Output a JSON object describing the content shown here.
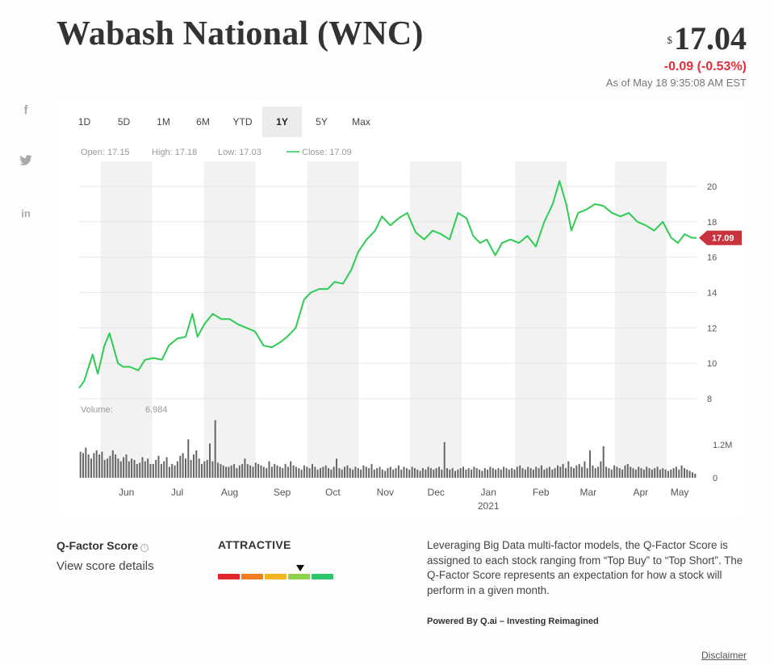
{
  "header": {
    "title": "Wabash National (WNC)",
    "currency_symbol": "$",
    "price": "17.04",
    "change": "-0.09 (-0.53%)",
    "as_of": "As of May 18 9:35:08 AM EST"
  },
  "social": {
    "facebook": "f",
    "twitter": "✦",
    "linkedin": "in"
  },
  "tabs": [
    "1D",
    "5D",
    "1M",
    "6M",
    "YTD",
    "1Y",
    "5Y",
    "Max"
  ],
  "active_tab": "1Y",
  "colors": {
    "line": "#2ecc52",
    "negative": "#e0303e",
    "band": "#f2f2f2",
    "volume": "#666666",
    "last_badge": "#c9333e"
  },
  "chart_data": {
    "type": "line",
    "stats": {
      "open_label": "Open:",
      "open": "17.15",
      "high_label": "High:",
      "high": "17.18",
      "low_label": "Low:",
      "low": "17.03",
      "close_label": "Close:",
      "close": "17.09"
    },
    "last_value_label": "17.09",
    "ylim": [
      8,
      20.5
    ],
    "y_ticks": [
      "8",
      "10",
      "12",
      "14",
      "16",
      "18",
      "20"
    ],
    "x_start": "2020-05-18",
    "x_end": "2021-05-18",
    "x_ticks": [
      {
        "label": "Jun",
        "date": "2020-06-15"
      },
      {
        "label": "Jul",
        "date": "2020-07-15"
      },
      {
        "label": "Aug",
        "date": "2020-08-15"
      },
      {
        "label": "Sep",
        "date": "2020-09-15"
      },
      {
        "label": "Oct",
        "date": "2020-10-15"
      },
      {
        "label": "Nov",
        "date": "2020-11-15"
      },
      {
        "label": "Dec",
        "date": "2020-12-15"
      },
      {
        "label": "Jan",
        "date": "2021-01-15"
      },
      {
        "label": "Feb",
        "date": "2021-02-15"
      },
      {
        "label": "Mar",
        "date": "2021-03-15"
      },
      {
        "label": "Apr",
        "date": "2021-04-15"
      },
      {
        "label": "May",
        "date": "2021-05-08"
      }
    ],
    "year_label": "2021",
    "price_series": {
      "dates": [
        "2020-05-18",
        "2020-05-21",
        "2020-05-26",
        "2020-05-29",
        "2020-06-02",
        "2020-06-05",
        "2020-06-10",
        "2020-06-13",
        "2020-06-17",
        "2020-06-22",
        "2020-06-26",
        "2020-07-01",
        "2020-07-06",
        "2020-07-10",
        "2020-07-15",
        "2020-07-20",
        "2020-07-24",
        "2020-07-27",
        "2020-07-31",
        "2020-08-05",
        "2020-08-10",
        "2020-08-15",
        "2020-08-20",
        "2020-08-25",
        "2020-08-30",
        "2020-09-04",
        "2020-09-09",
        "2020-09-14",
        "2020-09-18",
        "2020-09-23",
        "2020-09-28",
        "2020-10-02",
        "2020-10-07",
        "2020-10-12",
        "2020-10-16",
        "2020-10-21",
        "2020-10-26",
        "2020-10-30",
        "2020-11-04",
        "2020-11-09",
        "2020-11-13",
        "2020-11-18",
        "2020-11-23",
        "2020-11-28",
        "2020-12-03",
        "2020-12-08",
        "2020-12-13",
        "2020-12-18",
        "2020-12-23",
        "2020-12-28",
        "2021-01-02",
        "2021-01-06",
        "2021-01-10",
        "2021-01-14",
        "2021-01-19",
        "2021-01-23",
        "2021-01-28",
        "2021-02-02",
        "2021-02-07",
        "2021-02-12",
        "2021-02-17",
        "2021-02-22",
        "2021-02-26",
        "2021-03-02",
        "2021-03-05",
        "2021-03-09",
        "2021-03-14",
        "2021-03-19",
        "2021-03-24",
        "2021-03-29",
        "2021-04-03",
        "2021-04-08",
        "2021-04-13",
        "2021-04-18",
        "2021-04-23",
        "2021-04-28",
        "2021-05-03",
        "2021-05-07",
        "2021-05-11",
        "2021-05-15",
        "2021-05-18"
      ],
      "values": [
        8.6,
        9.0,
        10.5,
        9.4,
        11.0,
        11.7,
        10.0,
        9.8,
        9.8,
        9.6,
        10.2,
        10.3,
        10.2,
        11.0,
        11.4,
        11.5,
        12.8,
        11.5,
        12.2,
        12.8,
        12.5,
        12.5,
        12.2,
        12.0,
        11.8,
        11.0,
        10.9,
        11.2,
        11.5,
        12.0,
        13.6,
        14.0,
        14.2,
        14.2,
        14.6,
        14.5,
        15.3,
        16.3,
        17.0,
        17.5,
        18.3,
        17.8,
        18.2,
        18.5,
        17.4,
        17.0,
        17.5,
        17.3,
        17.0,
        18.5,
        18.2,
        17.2,
        16.8,
        17.0,
        16.1,
        16.8,
        17.0,
        16.8,
        17.2,
        16.6,
        18.0,
        19.0,
        20.3,
        19.0,
        17.5,
        18.5,
        18.7,
        19.0,
        18.9,
        18.5,
        18.3,
        18.5,
        18.0,
        17.8,
        17.5,
        18.0,
        17.1,
        16.8,
        17.3,
        17.1,
        17.09
      ]
    },
    "volume": {
      "label": "Volume:",
      "value": "6,984",
      "y_ticks": [
        "0",
        "1.2M"
      ],
      "max": 2000000,
      "values": [
        950000,
        900000,
        1100000,
        850000,
        700000,
        900000,
        1000000,
        850000,
        950000,
        650000,
        700000,
        800000,
        1000000,
        850000,
        700000,
        600000,
        750000,
        850000,
        600000,
        700000,
        650000,
        500000,
        550000,
        750000,
        600000,
        700000,
        500000,
        500000,
        650000,
        800000,
        500000,
        600000,
        750000,
        400000,
        500000,
        450000,
        600000,
        800000,
        900000,
        700000,
        1400000,
        650000,
        850000,
        1000000,
        700000,
        500000,
        600000,
        650000,
        1250000,
        600000,
        2100000,
        550000,
        500000,
        450000,
        400000,
        400000,
        450000,
        500000,
        350000,
        450000,
        500000,
        700000,
        500000,
        450000,
        400000,
        550000,
        500000,
        450000,
        400000,
        350000,
        600000,
        400000,
        500000,
        450000,
        400000,
        350000,
        500000,
        400000,
        600000,
        450000,
        400000,
        350000,
        300000,
        450000,
        400000,
        350000,
        500000,
        400000,
        300000,
        350000,
        400000,
        450000,
        350000,
        300000,
        400000,
        700000,
        350000,
        300000,
        400000,
        450000,
        350000,
        300000,
        400000,
        350000,
        300000,
        450000,
        400000,
        350000,
        500000,
        300000,
        350000,
        400000,
        300000,
        250000,
        350000,
        400000,
        300000,
        350000,
        450000,
        300000,
        400000,
        350000,
        300000,
        400000,
        350000,
        300000,
        250000,
        350000,
        300000,
        400000,
        350000,
        300000,
        350000,
        400000,
        300000,
        1300000,
        350000,
        300000,
        350000,
        250000,
        300000,
        350000,
        400000,
        300000,
        350000,
        300000,
        400000,
        350000,
        300000,
        250000,
        350000,
        300000,
        400000,
        350000,
        300000,
        350000,
        300000,
        400000,
        350000,
        300000,
        350000,
        300000,
        400000,
        450000,
        350000,
        300000,
        400000,
        350000,
        300000,
        400000,
        350000,
        450000,
        300000,
        350000,
        400000,
        300000,
        350000,
        450000,
        400000,
        500000,
        350000,
        600000,
        400000,
        350000,
        450000,
        500000,
        400000,
        600000,
        350000,
        1000000,
        450000,
        350000,
        400000,
        600000,
        1150000,
        400000,
        350000,
        300000,
        450000,
        400000,
        350000,
        300000,
        450000,
        500000,
        400000,
        350000,
        300000,
        400000,
        350000,
        300000,
        400000,
        350000,
        300000,
        350000,
        400000,
        300000,
        350000,
        300000,
        250000,
        300000,
        350000,
        400000,
        300000,
        450000,
        350000,
        300000,
        250000,
        200000,
        150000
      ]
    }
  },
  "qfactor": {
    "title": "Q-Factor Score",
    "info_icon": "i",
    "link": "View score details",
    "rating": "ATTRACTIVE",
    "meter_colors": [
      "#e0252f",
      "#f07d1f",
      "#f4b51e",
      "#8fd24a",
      "#2fc56a"
    ],
    "selected_index": 3,
    "description": "Leveraging Big Data multi-factor models, the Q-Factor Score is assigned to each stock ranging from “Top Buy” to “Top Short”. The Q-Factor Score represents an expectation for how a stock will perform in a given month.",
    "powered_by": "Powered By Q.ai – Investing Reimagined",
    "disclaimer": "Disclaimer"
  }
}
